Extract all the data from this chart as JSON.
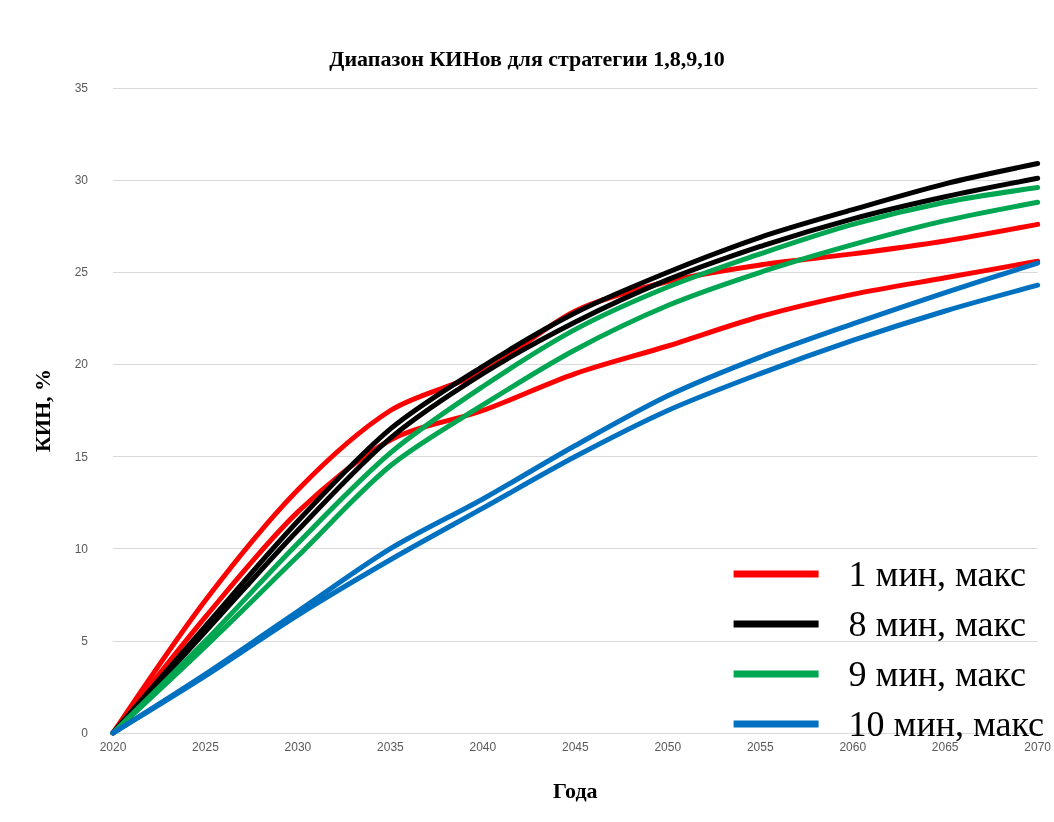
{
  "chart_data": {
    "type": "line",
    "title": "Диапазон КИНов для стратегии 1,8,9,10",
    "xlabel": "Года",
    "ylabel": "КИН, %",
    "x": [
      2020,
      2025,
      2030,
      2035,
      2040,
      2045,
      2050,
      2055,
      2060,
      2065,
      2070
    ],
    "xlim": [
      2020,
      2070
    ],
    "xticks": [
      2020,
      2025,
      2030,
      2035,
      2040,
      2045,
      2050,
      2055,
      2060,
      2065,
      2070
    ],
    "ylim": [
      0,
      35
    ],
    "yticks": [
      0,
      5,
      10,
      15,
      20,
      25,
      30,
      35
    ],
    "grid": "y",
    "legend": "bottom right",
    "marker": "none",
    "line_style": "solid",
    "series": [
      {
        "name": "1 мин, макс",
        "color": "#ff0000",
        "values": [
          0,
          7.2,
          13.2,
          17.5,
          19.6,
          22.9,
          24.5,
          25.4,
          26,
          26.7,
          27.6
        ]
      },
      {
        "color": "#ff0000",
        "values": [
          0,
          6.3,
          12,
          15.9,
          17.5,
          19.5,
          21,
          22.6,
          23.8,
          24.7,
          25.6
        ]
      },
      {
        "name": "8 мин, макс",
        "color": "#000000",
        "values": [
          0,
          5.8,
          11.5,
          16.5,
          19.9,
          22.8,
          25,
          26.9,
          28.4,
          29.8,
          30.9
        ]
      },
      {
        "color": "#000000",
        "values": [
          0,
          5.5,
          11,
          16,
          19.5,
          22.3,
          24.6,
          26.4,
          27.9,
          29.1,
          30.1
        ]
      },
      {
        "name": "9 мин, макс",
        "color": "#00a651",
        "values": [
          0,
          5,
          10.3,
          15.2,
          18.8,
          21.9,
          24.2,
          26,
          27.6,
          28.8,
          29.6
        ]
      },
      {
        "color": "#00a651",
        "values": [
          0,
          4.7,
          9.6,
          14.5,
          17.8,
          20.8,
          23.2,
          25,
          26.5,
          27.8,
          28.8
        ]
      },
      {
        "name": "10 мин, макс",
        "color": "#0070c0",
        "values": [
          0,
          3.2,
          6.6,
          10,
          12.7,
          15.6,
          18.3,
          20.4,
          22.2,
          23.9,
          25.5
        ]
      },
      {
        "color": "#0070c0",
        "values": [
          0,
          3.1,
          6.4,
          9.4,
          12.2,
          15,
          17.5,
          19.5,
          21.3,
          22.9,
          24.3
        ]
      }
    ]
  }
}
